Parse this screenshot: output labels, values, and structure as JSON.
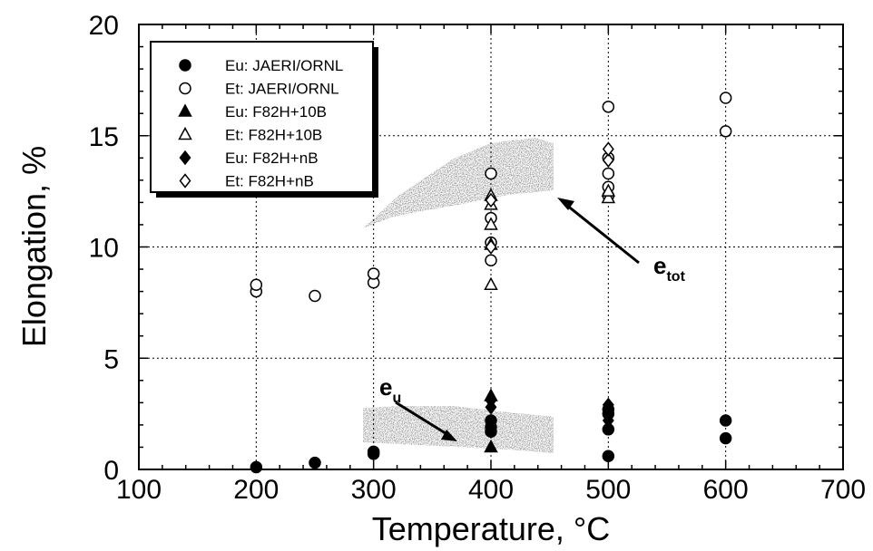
{
  "chart_data": {
    "type": "scatter",
    "xlabel": "Temperature, °C",
    "ylabel": "Elongation, %",
    "xlim": [
      100,
      700
    ],
    "ylim": [
      0,
      20
    ],
    "xticks": [
      "100",
      "200",
      "300",
      "400",
      "500",
      "600",
      "700"
    ],
    "yticks": [
      "0",
      "5",
      "10",
      "15",
      "20"
    ],
    "grid": true,
    "legend_position": "top-left",
    "series": [
      {
        "name": "Eu: JAERI/ORNL",
        "marker": "filled-circle",
        "points": [
          [
            200,
            0.1
          ],
          [
            250,
            0.3
          ],
          [
            300,
            0.7
          ],
          [
            300,
            0.8
          ],
          [
            400,
            1.7
          ],
          [
            400,
            1.9
          ],
          [
            400,
            2.2
          ],
          [
            500,
            0.6
          ],
          [
            500,
            1.8
          ],
          [
            500,
            2.5
          ],
          [
            500,
            2.7
          ],
          [
            600,
            1.4
          ],
          [
            600,
            2.2
          ]
        ]
      },
      {
        "name": "Et: JAERI/ORNL",
        "marker": "open-circle",
        "points": [
          [
            200,
            8.0
          ],
          [
            200,
            8.3
          ],
          [
            250,
            7.8
          ],
          [
            300,
            8.4
          ],
          [
            300,
            8.8
          ],
          [
            400,
            9.4
          ],
          [
            400,
            10.2
          ],
          [
            400,
            11.3
          ],
          [
            400,
            13.3
          ],
          [
            500,
            12.3
          ],
          [
            500,
            12.7
          ],
          [
            500,
            13.3
          ],
          [
            500,
            14.0
          ],
          [
            500,
            16.3
          ],
          [
            600,
            15.2
          ],
          [
            600,
            16.7
          ]
        ]
      },
      {
        "name": "Eu: F82H+10B",
        "marker": "filled-triangle",
        "points": [
          [
            400,
            1.0
          ],
          [
            400,
            3.3
          ]
        ]
      },
      {
        "name": "Et: F82H+10B",
        "marker": "open-triangle",
        "points": [
          [
            400,
            8.3
          ],
          [
            400,
            10.1
          ],
          [
            400,
            11.0
          ],
          [
            400,
            11.9
          ],
          [
            400,
            12.3
          ],
          [
            500,
            12.2
          ],
          [
            500,
            12.5
          ]
        ]
      },
      {
        "name": "Eu: F82H+nB",
        "marker": "filled-diamond",
        "points": [
          [
            400,
            2.8
          ],
          [
            400,
            3.1
          ],
          [
            500,
            2.2
          ],
          [
            500,
            2.9
          ]
        ]
      },
      {
        "name": "Et: F82H+nB",
        "marker": "open-diamond",
        "points": [
          [
            400,
            10.0
          ],
          [
            400,
            12.1
          ],
          [
            500,
            13.9
          ],
          [
            500,
            14.4
          ]
        ]
      }
    ],
    "annotations": [
      {
        "main": "e",
        "sub": "tot"
      },
      {
        "main": "e",
        "sub": "u"
      }
    ]
  }
}
